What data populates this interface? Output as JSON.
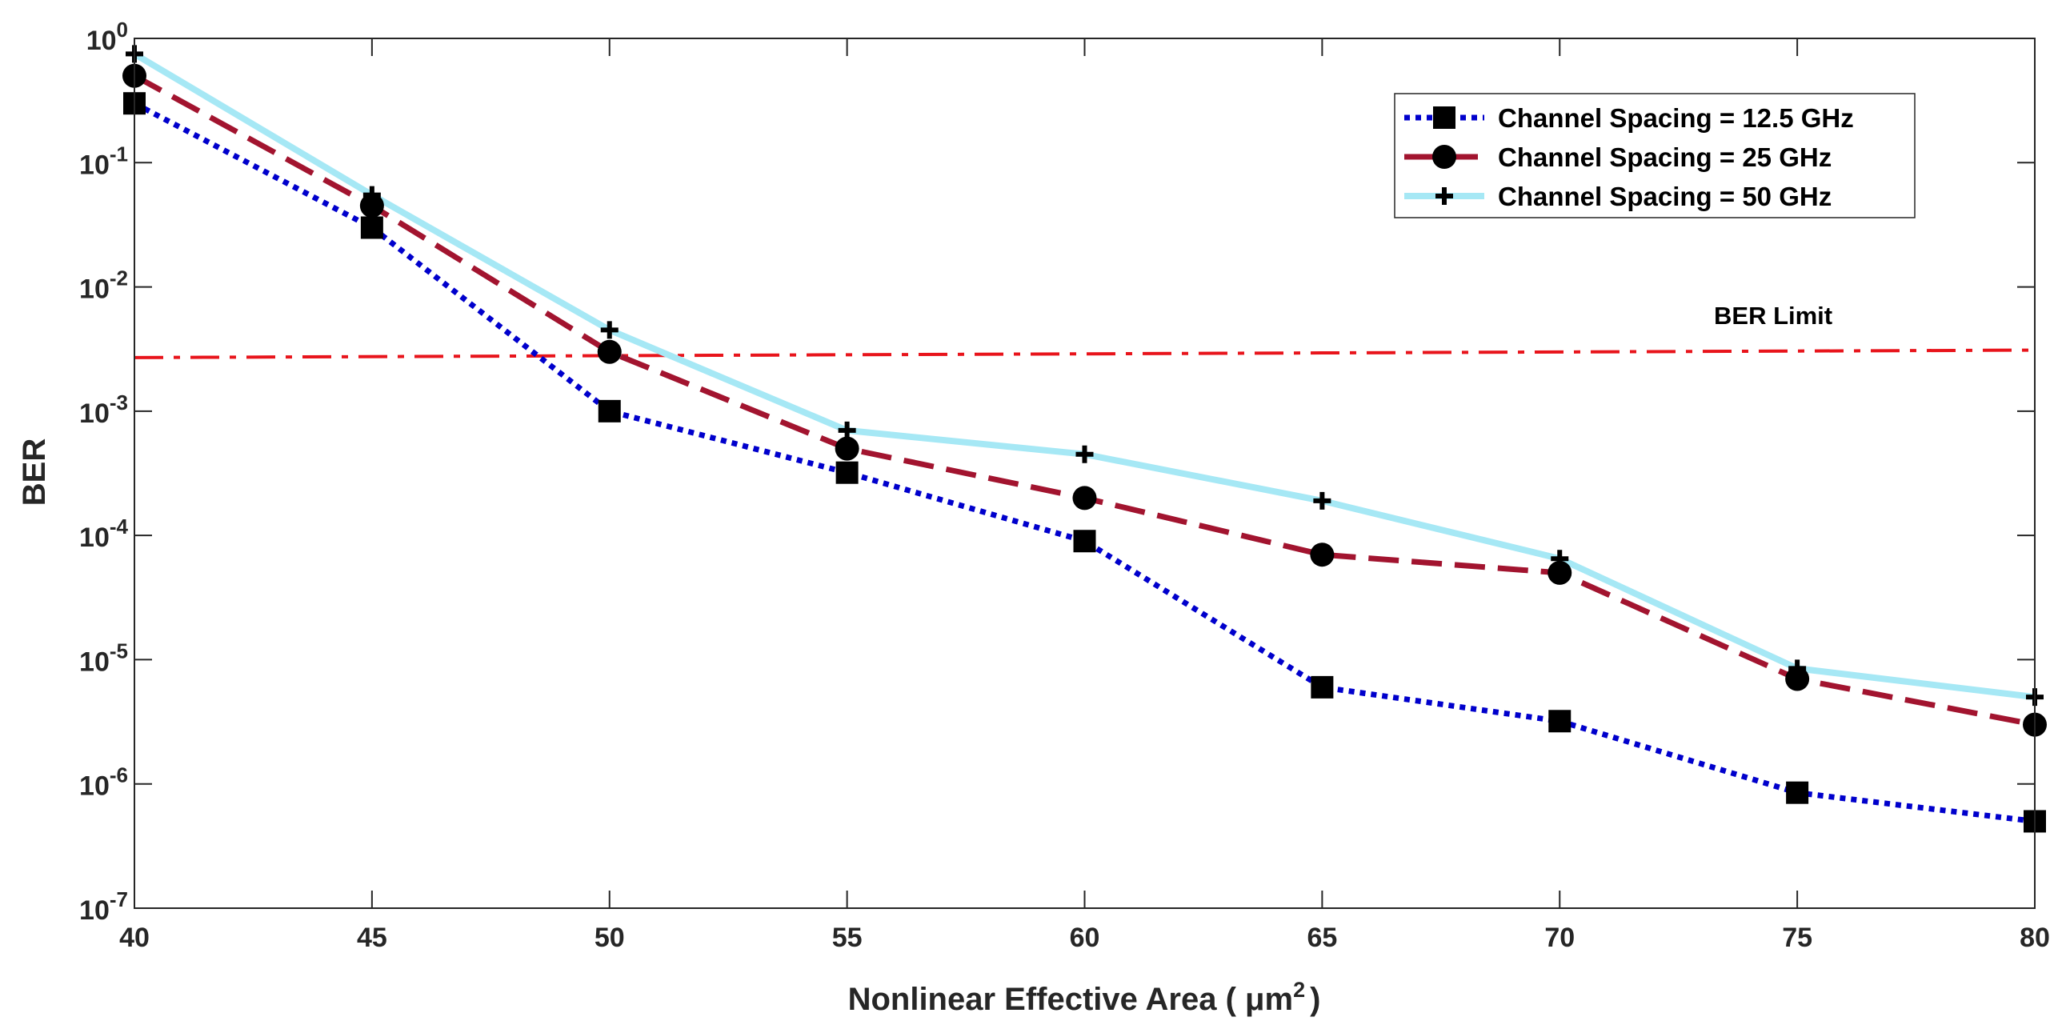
{
  "chart_data": {
    "type": "line",
    "title": "",
    "xlabel": "Nonlinear Effective Area ( μm",
    "xlabel_sup": "2",
    "xlabel_end": ")",
    "ylabel": "BER",
    "yscale": "log",
    "xlim": [
      40,
      80
    ],
    "ylim_exponent": [
      -7,
      0
    ],
    "x_ticks": [
      "40",
      "45",
      "50",
      "55",
      "60",
      "65",
      "70",
      "75",
      "80"
    ],
    "y_ticks": [
      {
        "base": "10",
        "exp": "0"
      },
      {
        "base": "10",
        "exp": "-1"
      },
      {
        "base": "10",
        "exp": "-2"
      },
      {
        "base": "10",
        "exp": "-3"
      },
      {
        "base": "10",
        "exp": "-4"
      },
      {
        "base": "10",
        "exp": "-5"
      },
      {
        "base": "10",
        "exp": "-6"
      },
      {
        "base": "10",
        "exp": "-7"
      }
    ],
    "x": [
      40,
      45,
      50,
      55,
      60,
      65,
      70,
      75,
      80
    ],
    "series": [
      {
        "name": "Channel Spacing = 12.5 GHz",
        "color": "#0000CC",
        "line_style": "dotted",
        "marker": "square",
        "values": [
          0.3,
          0.03,
          0.001,
          0.00032,
          9e-05,
          6e-06,
          3.2e-06,
          8.5e-07,
          5e-07
        ]
      },
      {
        "name": "Channel Spacing = 25 GHz",
        "color": "#A2142F",
        "line_style": "dashed",
        "marker": "circle",
        "values": [
          0.5,
          0.045,
          0.003,
          0.0005,
          0.0002,
          7e-05,
          5e-05,
          7e-06,
          3e-06
        ]
      },
      {
        "name": "Channel Spacing = 50 GHz",
        "color": "#A6E8F5",
        "line_style": "solid",
        "marker": "plus",
        "values": [
          0.75,
          0.055,
          0.0045,
          0.0007,
          0.00045,
          0.00019,
          6.5e-05,
          8.5e-06,
          5e-06
        ]
      }
    ],
    "reference_line": {
      "label": "BER Limit",
      "color": "#E8141B",
      "line_style": "dash-dot",
      "x": [
        40,
        80
      ],
      "values": [
        0.0027,
        0.0031
      ]
    },
    "legend_position": "top-right",
    "grid": false
  }
}
